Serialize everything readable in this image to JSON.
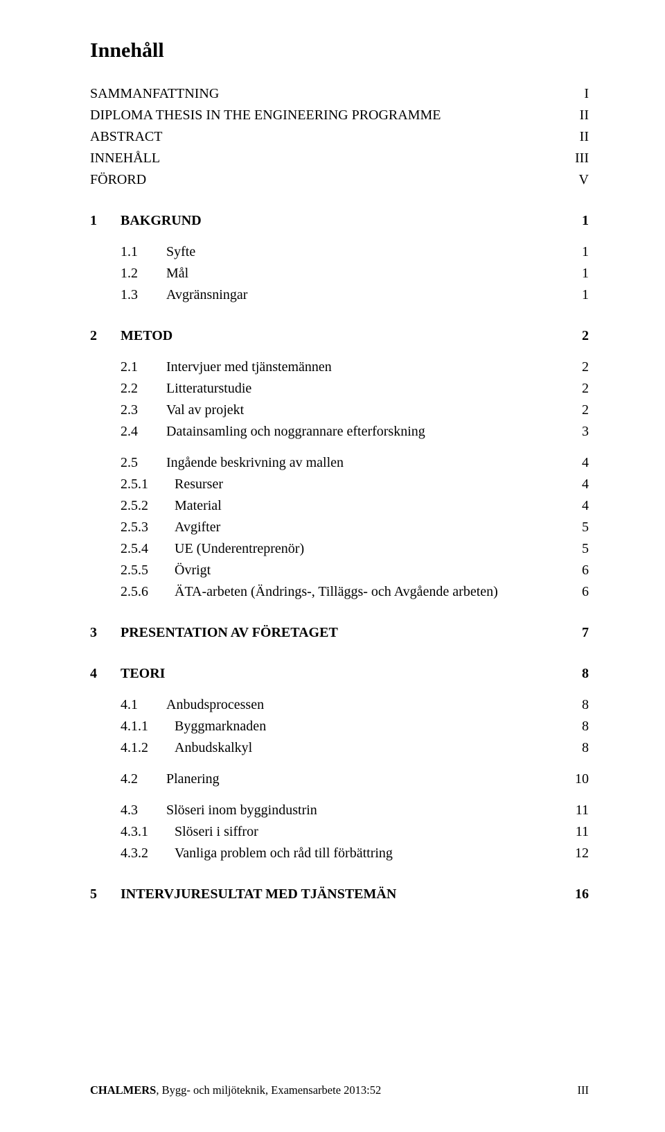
{
  "title": "Innehåll",
  "front": [
    {
      "label": "SAMMANFATTNING",
      "page": "I"
    },
    {
      "label": "DIPLOMA THESIS IN THE ENGINEERING PROGRAMME",
      "page": "II"
    },
    {
      "label": "ABSTRACT",
      "page": "II"
    },
    {
      "label": "INNEHÅLL",
      "page": "III"
    },
    {
      "label": "FÖRORD",
      "page": "V"
    }
  ],
  "chapters": [
    {
      "num": "1",
      "label": "BAKGRUND",
      "page": "1",
      "subs": [
        {
          "items": [
            {
              "num": "1.1",
              "label": "Syfte",
              "page": "1"
            },
            {
              "num": "1.2",
              "label": "Mål",
              "page": "1"
            },
            {
              "num": "1.3",
              "label": "Avgränsningar",
              "page": "1"
            }
          ]
        }
      ]
    },
    {
      "num": "2",
      "label": "METOD",
      "page": "2",
      "subs": [
        {
          "items": [
            {
              "num": "2.1",
              "label": "Intervjuer med tjänstemännen",
              "page": "2"
            },
            {
              "num": "2.2",
              "label": "Litteraturstudie",
              "page": "2"
            },
            {
              "num": "2.3",
              "label": "Val av projekt",
              "page": "2"
            },
            {
              "num": "2.4",
              "label": "Datainsamling och noggrannare efterforskning",
              "page": "3"
            }
          ]
        },
        {
          "items": [
            {
              "num": "2.5",
              "label": "Ingående beskrivning av mallen",
              "page": "4"
            },
            {
              "num": "2.5.1",
              "label": "Resurser",
              "page": "4",
              "lvl": 2
            },
            {
              "num": "2.5.2",
              "label": "Material",
              "page": "4",
              "lvl": 2
            },
            {
              "num": "2.5.3",
              "label": "Avgifter",
              "page": "5",
              "lvl": 2
            },
            {
              "num": "2.5.4",
              "label": "UE (Underentreprenör)",
              "page": "5",
              "lvl": 2
            },
            {
              "num": "2.5.5",
              "label": "Övrigt",
              "page": "6",
              "lvl": 2
            },
            {
              "num": "2.5.6",
              "label": "ÄTA-arbeten (Ändrings-, Tilläggs- och Avgående arbeten)",
              "page": "6",
              "lvl": 2
            }
          ]
        }
      ]
    },
    {
      "num": "3",
      "label": "PRESENTATION AV FÖRETAGET",
      "page": "7",
      "subs": []
    },
    {
      "num": "4",
      "label": "TEORI",
      "page": "8",
      "subs": [
        {
          "items": [
            {
              "num": "4.1",
              "label": "Anbudsprocessen",
              "page": "8"
            },
            {
              "num": "4.1.1",
              "label": "Byggmarknaden",
              "page": "8",
              "lvl": 2
            },
            {
              "num": "4.1.2",
              "label": "Anbudskalkyl",
              "page": "8",
              "lvl": 2
            }
          ]
        },
        {
          "items": [
            {
              "num": "4.2",
              "label": "Planering",
              "page": "10"
            }
          ]
        },
        {
          "items": [
            {
              "num": "4.3",
              "label": "Slöseri inom byggindustrin",
              "page": "11"
            },
            {
              "num": "4.3.1",
              "label": "Slöseri i siffror",
              "page": "11",
              "lvl": 2
            },
            {
              "num": "4.3.2",
              "label": "Vanliga problem och råd till förbättring",
              "page": "12",
              "lvl": 2
            }
          ]
        }
      ]
    },
    {
      "num": "5",
      "label": "INTERVJURESULTAT MED TJÄNSTEMÄN",
      "page": "16",
      "subs": []
    }
  ],
  "footer": {
    "source_bold": "CHALMERS",
    "source_rest": ", Bygg- och miljöteknik, Examensarbete 2013:52",
    "page": "III"
  }
}
